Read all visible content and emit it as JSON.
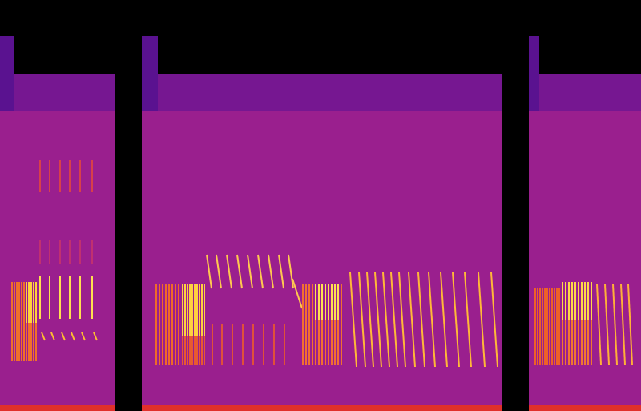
{
  "chart_data": {
    "type": "spectrogram",
    "tick_labels": false,
    "xlim": [
      0,
      800
    ],
    "ylim": [
      0,
      513
    ],
    "segments": [
      {
        "x1": 0,
        "x2": 143,
        "top": 421,
        "band_low": 375,
        "onset_end": 18,
        "onset_top": 468,
        "floor": 8
      },
      {
        "x1": 177,
        "x2": 627,
        "top": 421,
        "band_low": 375,
        "onset_end": 197,
        "onset_top": 468,
        "floor": 8
      },
      {
        "x1": 660,
        "x2": 800,
        "top": 421,
        "band_low": 375,
        "onset_end": 673,
        "onset_top": 468,
        "floor": 8
      }
    ],
    "syllables": [
      {
        "color": "#f0702a",
        "x": [
          15,
          18,
          21,
          24,
          27,
          30,
          33,
          36,
          39,
          42,
          45
        ],
        "y_low": 63,
        "y_high": 161,
        "dx": 0
      },
      {
        "color": "#ffd23c",
        "x": [
          33,
          36,
          39,
          42,
          45
        ],
        "y_low": 110,
        "y_high": 161,
        "dx": 0
      },
      {
        "color": "#ffe050",
        "x": [
          50,
          62,
          75,
          87,
          100,
          115
        ],
        "y_low": 115,
        "y_high": 168,
        "dx": 0
      },
      {
        "color": "#ffc030",
        "x": [
          52,
          64,
          77,
          89,
          102,
          117
        ],
        "y_low": 88,
        "y_high": 98,
        "dx": 4
      },
      {
        "color": "#d8404a",
        "x": [
          50,
          62,
          75,
          87,
          100,
          115
        ],
        "y_low": 273,
        "y_high": 313,
        "dx": 0
      },
      {
        "color": "#c03070",
        "x": [
          50,
          62,
          75,
          87,
          100,
          115
        ],
        "y_low": 183,
        "y_high": 213,
        "dx": 0
      },
      {
        "color": "#f06a28",
        "x": [
          195,
          199,
          203,
          207,
          211,
          215,
          219,
          223
        ],
        "y_low": 58,
        "y_high": 158,
        "dx": 0
      },
      {
        "color": "#e85a30",
        "x": [
          228,
          231,
          234,
          237,
          240,
          243,
          246,
          249,
          252,
          255
        ],
        "y_low": 58,
        "y_high": 93,
        "dx": 0
      },
      {
        "color": "#ffd040",
        "x": [
          228,
          231,
          234,
          237,
          240,
          243,
          246,
          249,
          252,
          255
        ],
        "y_low": 93,
        "y_high": 158,
        "dx": 0
      },
      {
        "color": "#ffc850",
        "x": [
          258,
          270,
          283,
          296,
          309,
          322,
          335,
          348,
          360
        ],
        "y_low": 153,
        "y_high": 195,
        "dx": 6
      },
      {
        "color": "#ffc850",
        "x": [
          365
        ],
        "y_low": 128,
        "y_high": 165,
        "dx": 12
      },
      {
        "color": "#e0503a",
        "x": [
          265,
          277,
          290,
          303,
          316,
          329,
          342,
          355
        ],
        "y_low": 58,
        "y_high": 108,
        "dx": 0
      },
      {
        "color": "#f27030",
        "x": [
          378,
          382,
          386,
          390,
          394,
          398,
          402,
          406,
          410,
          414,
          418,
          422,
          426
        ],
        "y_low": 58,
        "y_high": 158,
        "dx": 0
      },
      {
        "color": "#ffe050",
        "x": [
          394,
          398,
          402,
          406,
          410,
          414,
          418,
          422
        ],
        "y_low": 113,
        "y_high": 158,
        "dx": 0
      },
      {
        "color": "#ffb838",
        "x": [
          437,
          448,
          458,
          468,
          478,
          488,
          498,
          510,
          522,
          535,
          550,
          565,
          580,
          597,
          613
        ],
        "y_low": 55,
        "y_high": 173,
        "dx": 8
      },
      {
        "color": "#ee6028",
        "x": [
          668,
          671,
          674,
          677,
          680,
          683,
          686,
          689,
          692,
          695,
          698
        ],
        "y_low": 58,
        "y_high": 153,
        "dx": 0
      },
      {
        "color": "#f07830",
        "x": [
          702,
          706,
          710,
          714,
          718,
          722,
          726,
          730,
          734,
          738
        ],
        "y_low": 58,
        "y_high": 113,
        "dx": 0
      },
      {
        "color": "#ffd848",
        "x": [
          702,
          706,
          710,
          714,
          718,
          722,
          726,
          730,
          734,
          738
        ],
        "y_low": 113,
        "y_high": 161,
        "dx": 0
      },
      {
        "color": "#ffb038",
        "x": [
          745,
          755,
          765,
          775,
          784
        ],
        "y_low": 58,
        "y_high": 158,
        "dx": 5
      }
    ]
  }
}
